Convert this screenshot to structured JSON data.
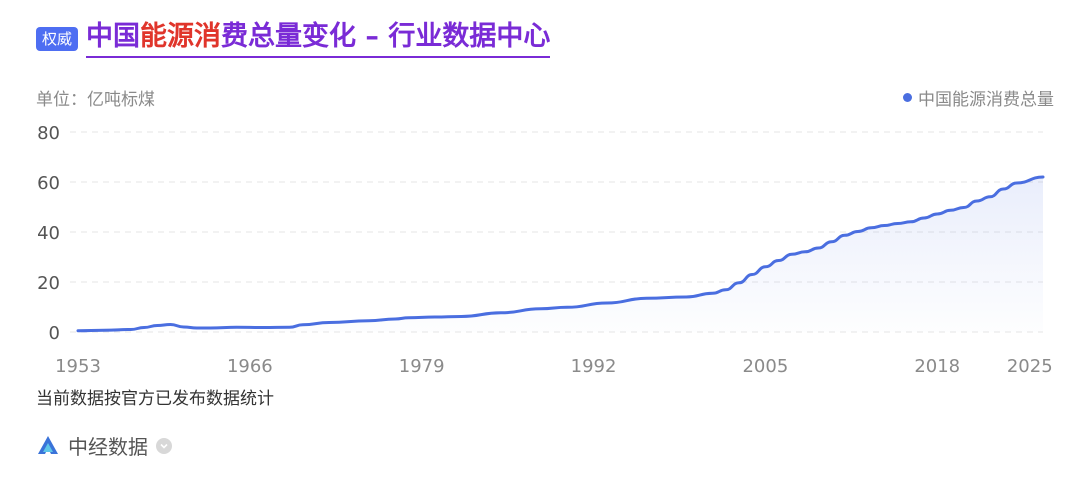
{
  "header": {
    "badge": "权威",
    "title_parts": [
      "中国",
      "能源消",
      "费总量变化 – 行业数据中心"
    ]
  },
  "footer": {
    "note": "当前数据按官方已发布数据统计",
    "source": "中经数据",
    "source_icon": "zhongjing-logo-icon",
    "chevron_icon": "chevron-down-icon"
  },
  "colors": {
    "accent": "#7a2bd6",
    "highlight": "#e0352b",
    "badge": "#4e6ef2",
    "series": "#4a6ee0"
  },
  "chart_data": {
    "type": "area",
    "title": "",
    "ylabel": "单位：亿吨标煤",
    "xlabel": "",
    "legend_position": "top-right",
    "grid": true,
    "ylim": [
      0,
      80
    ],
    "yticks": [
      0,
      20,
      40,
      60,
      80
    ],
    "xticks": [
      "1953",
      "1966",
      "1979",
      "1992",
      "2005",
      "2018",
      "2025"
    ],
    "series": [
      {
        "name": "中国能源消费总量",
        "x": [
          1953,
          1955,
          1957,
          1958,
          1959,
          1960,
          1961,
          1962,
          1963,
          1965,
          1967,
          1969,
          1970,
          1972,
          1975,
          1977,
          1978,
          1980,
          1982,
          1985,
          1988,
          1990,
          1993,
          1996,
          1999,
          2001,
          2002,
          2003,
          2004,
          2005,
          2006,
          2007,
          2008,
          2009,
          2010,
          2011,
          2012,
          2013,
          2014,
          2015,
          2016,
          2017,
          2018,
          2019,
          2020,
          2021,
          2022,
          2023,
          2024,
          2026
        ],
        "values": [
          0.5,
          0.7,
          1.0,
          1.8,
          2.6,
          3.0,
          2.0,
          1.6,
          1.6,
          1.9,
          1.8,
          1.9,
          2.9,
          3.8,
          4.5,
          5.2,
          5.7,
          6.0,
          6.2,
          7.7,
          9.3,
          9.9,
          11.6,
          13.5,
          14.0,
          15.5,
          16.9,
          19.7,
          23.0,
          26.1,
          28.6,
          31.1,
          32.1,
          33.6,
          36.1,
          38.7,
          40.2,
          41.7,
          42.6,
          43.4,
          44.1,
          45.6,
          47.2,
          48.7,
          49.8,
          52.4,
          54.1,
          57.2,
          59.6,
          62.0
        ]
      }
    ]
  }
}
